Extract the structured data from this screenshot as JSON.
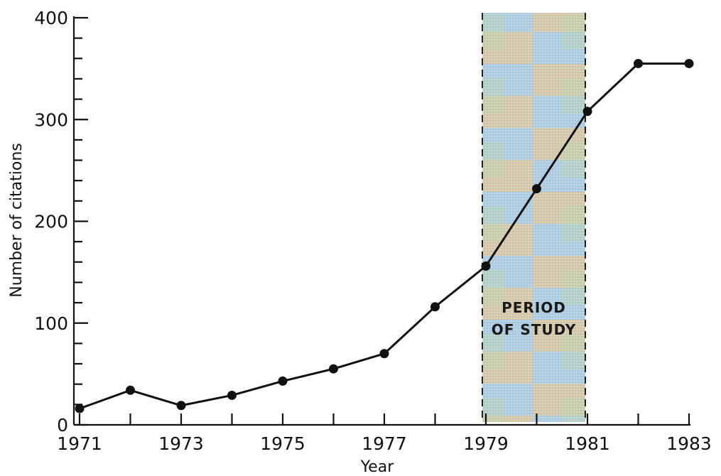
{
  "chart_data": {
    "type": "line",
    "xlabel": "Year",
    "ylabel": "Number of citations",
    "xlim": [
      1971,
      1983
    ],
    "ylim": [
      0,
      400
    ],
    "x_ticks": [
      1971,
      1972,
      1973,
      1974,
      1975,
      1976,
      1977,
      1978,
      1979,
      1980,
      1981,
      1982,
      1983
    ],
    "x_tick_labels": [
      "1971",
      "1973",
      "1975",
      "1977",
      "1979",
      "1981",
      "1983"
    ],
    "y_ticks_major": [
      0,
      100,
      200,
      300,
      400
    ],
    "y_tick_labels": [
      "0",
      "100",
      "200",
      "300",
      "400"
    ],
    "y_ticks_minor_step": 20,
    "grid": false,
    "series": [
      {
        "x": [
          1971,
          1972,
          1973,
          1974,
          1975,
          1976,
          1977,
          1978,
          1979,
          1980,
          1981,
          1982,
          1983
        ],
        "y": [
          16,
          34,
          19,
          29,
          43,
          55,
          70,
          116,
          156,
          232,
          308,
          355,
          355
        ]
      }
    ],
    "highlight_region": {
      "x_start": 1979,
      "x_end": 1981,
      "label_lines": [
        "PERIOD",
        "OF STUDY"
      ],
      "fill_colors": [
        "#a9cce3",
        "#e8c99a",
        "#b8d4a8"
      ]
    }
  }
}
